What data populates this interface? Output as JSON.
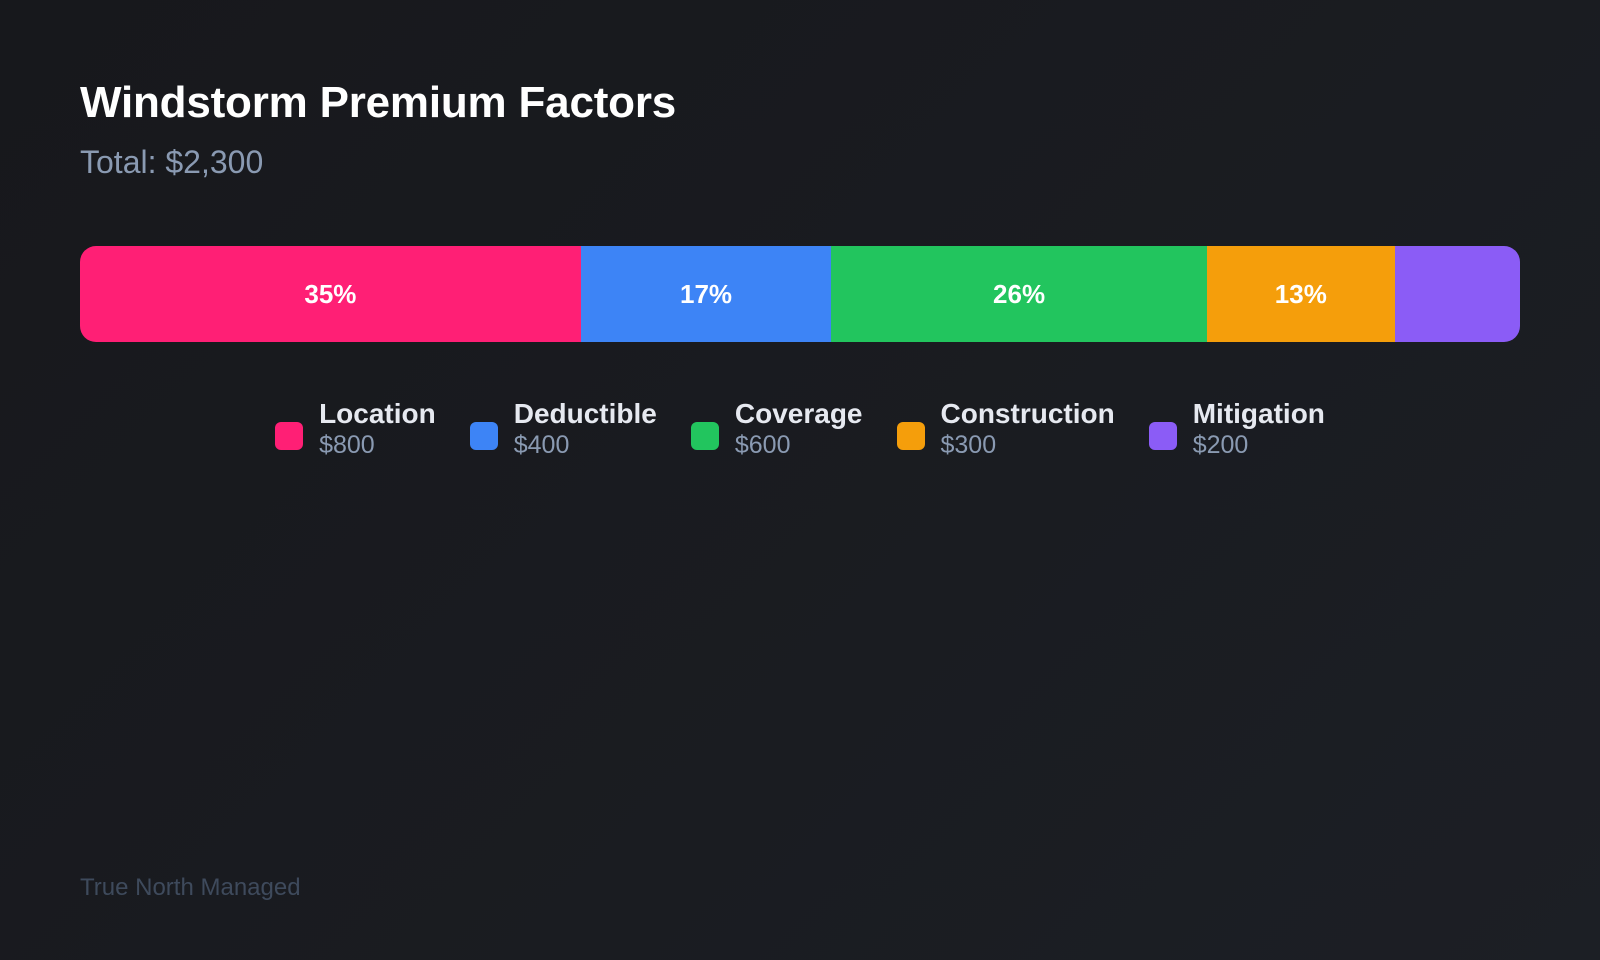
{
  "header": {
    "title": "Windstorm Premium Factors",
    "subtitle": "Total: $2,300"
  },
  "segments": [
    {
      "name": "Location",
      "value": "$800",
      "pct_label": "35%",
      "width": "34.78%",
      "color": "#ff1f75"
    },
    {
      "name": "Deductible",
      "value": "$400",
      "pct_label": "17%",
      "width": "17.39%",
      "color": "#3d84f6"
    },
    {
      "name": "Coverage",
      "value": "$600",
      "pct_label": "26%",
      "width": "26.09%",
      "color": "#22c55e"
    },
    {
      "name": "Construction",
      "value": "$300",
      "pct_label": "13%",
      "width": "13.04%",
      "color": "#f59e0b"
    },
    {
      "name": "Mitigation",
      "value": "$200",
      "pct_label": "",
      "width": "8.70%",
      "color": "#8b5cf6"
    }
  ],
  "footer": {
    "text": "True North Managed"
  },
  "chart_data": {
    "type": "bar",
    "subtype": "stacked-horizontal-100",
    "title": "Windstorm Premium Factors",
    "subtitle": "Total: $2,300",
    "categories": [
      "Location",
      "Deductible",
      "Coverage",
      "Construction",
      "Mitigation"
    ],
    "values": [
      800,
      400,
      600,
      300,
      200
    ],
    "percent_labels": [
      "35%",
      "17%",
      "26%",
      "13%",
      ""
    ],
    "colors": [
      "#ff1f75",
      "#3d84f6",
      "#22c55e",
      "#f59e0b",
      "#8b5cf6"
    ],
    "total": 2300,
    "legend_position": "bottom-center",
    "grid": false,
    "xlabel": "",
    "ylabel": ""
  }
}
